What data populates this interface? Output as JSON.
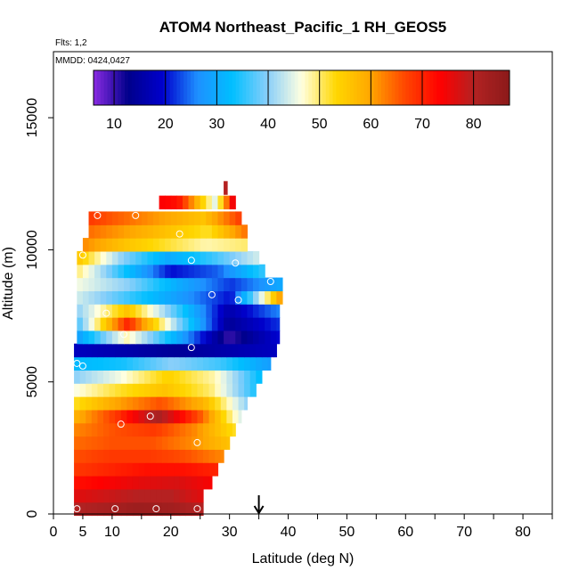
{
  "chart_data": {
    "type": "heatmap",
    "title": "ATOM4 Northeast_Pacific_1 RH_GEOS5",
    "annotations": [
      "Flts: 1,2",
      "MMDD: 0424,0427"
    ],
    "xlabel": "Latitude (deg N)",
    "ylabel": "Altitude (m)",
    "xlim": [
      0,
      85
    ],
    "ylim": [
      0,
      17500
    ],
    "x_ticks": [
      0,
      5,
      10,
      20,
      30,
      40,
      50,
      60,
      70,
      80
    ],
    "y_ticks": [
      0,
      5000,
      10000,
      15000
    ],
    "colorbar": {
      "min": 6,
      "max": 87,
      "ticks": [
        10,
        20,
        30,
        40,
        50,
        60,
        70,
        80
      ],
      "colors": [
        "#8a2be2",
        "#00008b",
        "#0000cd",
        "#1e90ff",
        "#00bfff",
        "#87cefa",
        "#ffffe0",
        "#ffd700",
        "#ffa500",
        "#ff4500",
        "#ff0000",
        "#b22222",
        "#8b1a1a"
      ]
    },
    "marker_latitude": 35,
    "cells": [
      {
        "alt": 200,
        "x0": 3.5,
        "x1": 25.5,
        "v": [
          80,
          82,
          84,
          83,
          80
        ]
      },
      {
        "alt": 700,
        "x0": 3.5,
        "x1": 25.5,
        "v": [
          76,
          78,
          80,
          80,
          76
        ]
      },
      {
        "alt": 1200,
        "x0": 3.5,
        "x1": 27,
        "v": [
          72,
          74,
          76,
          77,
          74
        ]
      },
      {
        "alt": 1700,
        "x0": 3.5,
        "x1": 28,
        "v": [
          68,
          70,
          72,
          72,
          70
        ]
      },
      {
        "alt": 2200,
        "x0": 3.5,
        "x1": 29,
        "v": [
          66,
          68,
          68,
          66,
          62
        ]
      },
      {
        "alt": 2700,
        "x0": 3.5,
        "x1": 30,
        "v": [
          64,
          66,
          66,
          62,
          56
        ]
      },
      {
        "alt": 3200,
        "x0": 3.5,
        "x1": 31,
        "v": [
          62,
          66,
          68,
          62,
          52
        ]
      },
      {
        "alt": 3700,
        "x0": 3.5,
        "x1": 32,
        "v": [
          58,
          68,
          82,
          66,
          44
        ]
      },
      {
        "alt": 4200,
        "x0": 3.5,
        "x1": 33,
        "v": [
          52,
          60,
          66,
          58,
          40
        ]
      },
      {
        "alt": 4700,
        "x0": 3.5,
        "x1": 34.5,
        "v": [
          46,
          52,
          56,
          50,
          34
        ]
      },
      {
        "alt": 5200,
        "x0": 3.5,
        "x1": 35.5,
        "v": [
          40,
          46,
          54,
          48,
          32
        ]
      },
      {
        "alt": 5700,
        "x0": 3.5,
        "x1": 37,
        "v": [
          32,
          34,
          40,
          36,
          28
        ]
      },
      {
        "alt": 6200,
        "x0": 3.5,
        "x1": 38,
        "v": [
          18,
          16,
          14,
          16,
          18
        ]
      },
      {
        "alt": 6700,
        "x0": 4,
        "x1": 38.5,
        "v": [
          28,
          48,
          30,
          10,
          20
        ]
      },
      {
        "alt": 7200,
        "x0": 4,
        "x1": 38.5,
        "v": [
          36,
          70,
          40,
          14,
          22
        ]
      },
      {
        "alt": 7700,
        "x0": 4,
        "x1": 38.5,
        "v": [
          40,
          56,
          36,
          16,
          26
        ]
      },
      {
        "alt": 8200,
        "x0": 4,
        "x1": 39,
        "v": [
          44,
          36,
          28,
          20,
          62
        ]
      },
      {
        "alt": 8700,
        "x0": 4,
        "x1": 39,
        "v": [
          46,
          40,
          30,
          22,
          30
        ]
      },
      {
        "alt": 9200,
        "x0": 4,
        "x1": 36,
        "v": [
          50,
          34,
          20,
          24,
          36
        ]
      },
      {
        "alt": 9700,
        "x0": 4,
        "x1": 35,
        "v": [
          56,
          40,
          30,
          36,
          44
        ]
      },
      {
        "alt": 10200,
        "x0": 5,
        "x1": 33,
        "v": [
          62,
          56,
          52,
          48,
          50
        ]
      },
      {
        "alt": 10700,
        "x0": 6,
        "x1": 33,
        "v": [
          64,
          60,
          56,
          52,
          64
        ]
      },
      {
        "alt": 11200,
        "x0": 6,
        "x1": 32,
        "v": [
          68,
          64,
          60,
          56,
          68
        ]
      },
      {
        "alt": 11800,
        "x0": 18,
        "x1": 31,
        "v": [
          74,
          72,
          58,
          44,
          80
        ]
      },
      {
        "alt": 12350,
        "x0": 29,
        "x1": 29.6,
        "v": [
          80
        ]
      }
    ],
    "points": [
      [
        4,
        200
      ],
      [
        10.5,
        200
      ],
      [
        17.5,
        200
      ],
      [
        24.5,
        200
      ],
      [
        24.5,
        2700
      ],
      [
        11.5,
        3400
      ],
      [
        16.5,
        3700
      ],
      [
        4,
        5700
      ],
      [
        5,
        5600
      ],
      [
        23.5,
        6300
      ],
      [
        12,
        6800
      ],
      [
        9,
        7600
      ],
      [
        27,
        8300
      ],
      [
        31.5,
        8100
      ],
      [
        37,
        8800
      ],
      [
        5,
        9800
      ],
      [
        23.5,
        9600
      ],
      [
        31,
        9500
      ],
      [
        7.5,
        11300
      ],
      [
        14,
        11300
      ],
      [
        21.5,
        10600
      ]
    ]
  }
}
